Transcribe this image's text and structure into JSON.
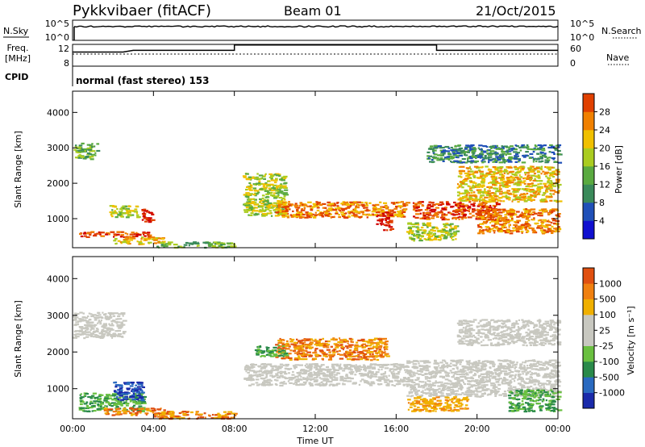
{
  "header": {
    "station": "Pykkvibaer (fitACF)",
    "beam": "Beam 01",
    "date": "21/Oct/2015"
  },
  "strip_labels": {
    "nsky": "N.Sky",
    "nsky_ticks": [
      "10^5",
      "10^0"
    ],
    "nsearch": "N.Search",
    "nsearch_ticks": [
      "10^5",
      "10^0"
    ],
    "freq_line1": "Freq.",
    "freq_line2": "[MHz]",
    "freq_ticks": [
      "12",
      "8"
    ],
    "nave": "Nave",
    "nave_ticks": [
      "60",
      "0"
    ],
    "cpid": "CPID",
    "cpid_value": "normal (fast stereo) 153"
  },
  "colors": {
    "power_scale": [
      "#1010d0",
      "#2050b8",
      "#3a8a5a",
      "#5aaa40",
      "#aacc20",
      "#f0c000",
      "#f08000",
      "#e04000",
      "#d00000"
    ],
    "velocity_scale": [
      "#1a2aaa",
      "#2a6ac0",
      "#2a8a4a",
      "#6ac040",
      "#c8c8c0",
      "#c8c8c0",
      "#f0b000",
      "#f08010",
      "#e05010",
      "#d00000"
    ],
    "velocity_grey": "#c8c8c0",
    "trace": "#000000"
  },
  "chart_data": [
    {
      "type": "heatmap",
      "name": "power",
      "xlabel": "",
      "ylabel": "Slant Range [km]",
      "ylim": [
        180,
        4600
      ],
      "xlim_hours": [
        0,
        24
      ],
      "y_ticks": [
        "1000",
        "2000",
        "3000",
        "4000"
      ],
      "y_tick_values": [
        1000,
        2000,
        3000,
        4000
      ],
      "colorbar_label": "Power [dB]",
      "colorbar_ticks": [
        "4",
        "8",
        "12",
        "16",
        "20",
        "24",
        "28"
      ],
      "colorbar_range": [
        0,
        32
      ],
      "features": [
        {
          "t0": 0.0,
          "t1": 1.2,
          "r0": 2700,
          "r1": 3150,
          "level": 3
        },
        {
          "t0": 0.3,
          "t1": 3.8,
          "r0": 500,
          "r1": 650,
          "level": 7
        },
        {
          "t0": 2.0,
          "t1": 4.5,
          "r0": 300,
          "r1": 500,
          "level": 5
        },
        {
          "t0": 3.4,
          "t1": 3.9,
          "r0": 900,
          "r1": 1300,
          "level": 8
        },
        {
          "t0": 1.8,
          "t1": 3.2,
          "r0": 1050,
          "r1": 1400,
          "level": 4
        },
        {
          "t0": 4.0,
          "t1": 8.0,
          "r0": 200,
          "r1": 360,
          "level": 3
        },
        {
          "t0": 8.4,
          "t1": 10.5,
          "r0": 1100,
          "r1": 2300,
          "level": 4
        },
        {
          "t0": 10.0,
          "t1": 16.5,
          "r0": 1050,
          "r1": 1500,
          "level": 6
        },
        {
          "t0": 15.0,
          "t1": 15.7,
          "r0": 700,
          "r1": 1200,
          "level": 8
        },
        {
          "t0": 16.5,
          "t1": 19.0,
          "r0": 400,
          "r1": 900,
          "level": 4
        },
        {
          "t0": 16.8,
          "t1": 21.0,
          "r0": 1000,
          "r1": 1500,
          "level": 7
        },
        {
          "t0": 19.0,
          "t1": 24.0,
          "r0": 1500,
          "r1": 2500,
          "level": 5
        },
        {
          "t0": 20.0,
          "t1": 24.0,
          "r0": 600,
          "r1": 1300,
          "level": 6
        },
        {
          "t0": 17.5,
          "t1": 24.0,
          "r0": 2600,
          "r1": 3100,
          "level": 2
        }
      ]
    },
    {
      "type": "heatmap",
      "name": "velocity",
      "xlabel": "Time UT",
      "ylabel": "Slant Range [km]",
      "ylim": [
        180,
        4600
      ],
      "xlim_hours": [
        0,
        24
      ],
      "x_ticks": [
        "00:00",
        "04:00",
        "08:00",
        "12:00",
        "16:00",
        "20:00",
        "00:00"
      ],
      "x_tick_values": [
        0,
        4,
        8,
        12,
        16,
        20,
        24
      ],
      "y_ticks": [
        "1000",
        "2000",
        "3000",
        "4000"
      ],
      "y_tick_values": [
        1000,
        2000,
        3000,
        4000
      ],
      "colorbar_label": "Velocity [m s⁻¹]",
      "colorbar_ticks": [
        "1000",
        "500",
        "100",
        "25",
        "-25",
        "-100",
        "-500",
        "-1000"
      ],
      "features": [
        {
          "t0": 0.0,
          "t1": 2.5,
          "r0": 2400,
          "r1": 3100,
          "level": "grey"
        },
        {
          "t0": 0.3,
          "t1": 3.5,
          "r0": 400,
          "r1": 900,
          "level": "green"
        },
        {
          "t0": 2.0,
          "t1": 3.5,
          "r0": 700,
          "r1": 1200,
          "level": "blue"
        },
        {
          "t0": 1.5,
          "t1": 4.5,
          "r0": 300,
          "r1": 500,
          "level": "orange"
        },
        {
          "t0": 4.0,
          "t1": 8.0,
          "r0": 200,
          "r1": 400,
          "level": "orange"
        },
        {
          "t0": 8.4,
          "t1": 16.5,
          "r0": 1100,
          "r1": 1700,
          "level": "grey"
        },
        {
          "t0": 10.0,
          "t1": 15.5,
          "r0": 1800,
          "r1": 2400,
          "level": "orange"
        },
        {
          "t0": 9.0,
          "t1": 10.5,
          "r0": 1900,
          "r1": 2200,
          "level": "green"
        },
        {
          "t0": 16.5,
          "t1": 24.0,
          "r0": 800,
          "r1": 1800,
          "level": "grey"
        },
        {
          "t0": 19.0,
          "t1": 24.0,
          "r0": 2200,
          "r1": 2900,
          "level": "grey"
        },
        {
          "t0": 21.5,
          "t1": 24.0,
          "r0": 400,
          "r1": 1000,
          "level": "green"
        },
        {
          "t0": 16.5,
          "t1": 19.5,
          "r0": 400,
          "r1": 800,
          "level": "yellow"
        }
      ]
    },
    {
      "type": "line",
      "name": "frequency",
      "ylim": [
        8,
        12
      ],
      "x": [
        0,
        2.5,
        3.0,
        8.0,
        8.0,
        18.0,
        18.0,
        24.0
      ],
      "values": [
        10.6,
        10.6,
        10.9,
        10.9,
        11.9,
        11.9,
        10.9,
        10.9
      ]
    }
  ]
}
